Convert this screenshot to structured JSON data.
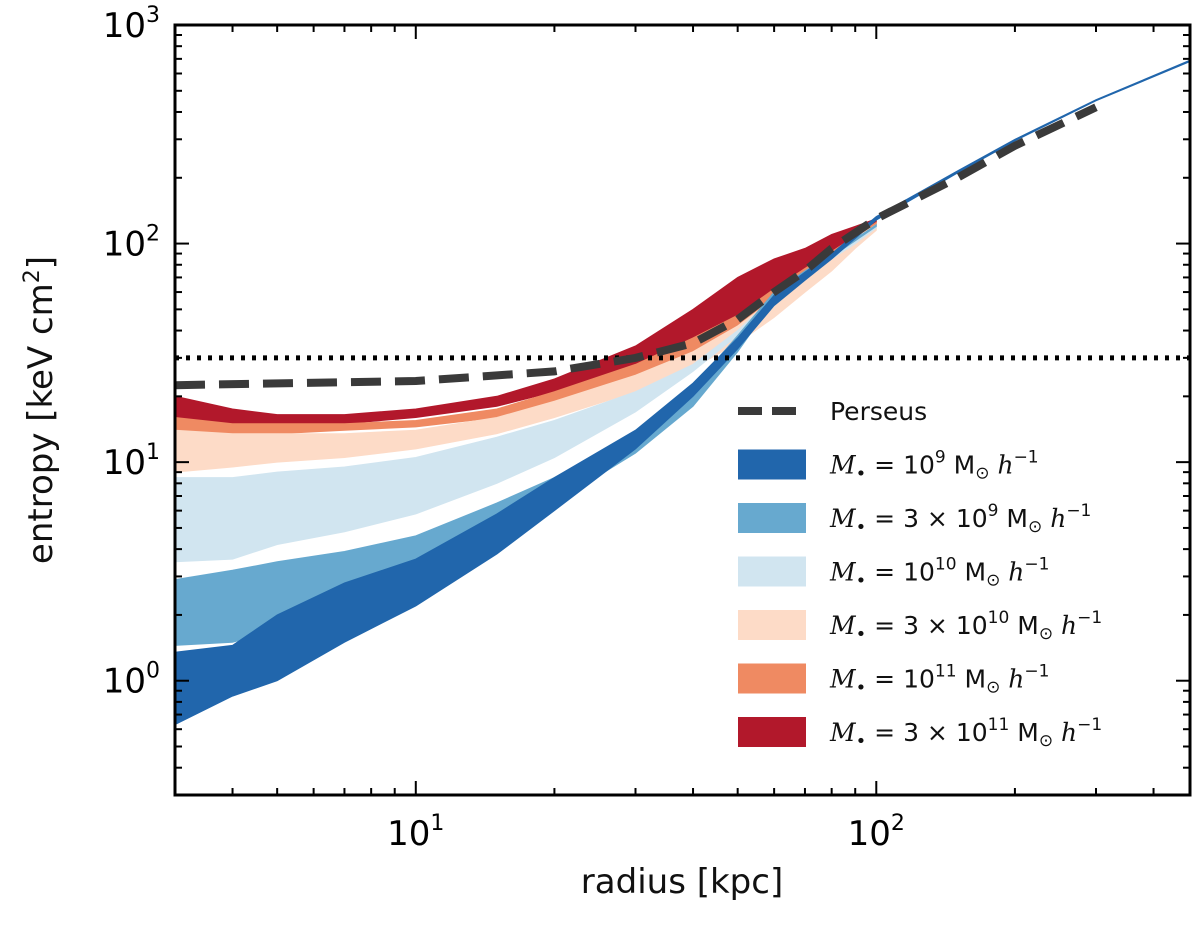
{
  "chart_data": {
    "type": "area",
    "title": "",
    "xlabel": "radius [kpc]",
    "ylabel": "entropy [keV cm",
    "ylabel_sup": "2",
    "ylabel_close": "]",
    "xscale": "log",
    "yscale": "log",
    "xlim": [
      3.0,
      480
    ],
    "ylim": [
      0.3,
      1000
    ],
    "x_ticks": [
      {
        "value": 10,
        "base": "10",
        "exp": "1"
      },
      {
        "value": 100,
        "base": "10",
        "exp": "2"
      }
    ],
    "y_ticks": [
      {
        "value": 1,
        "base": "10",
        "exp": "0"
      },
      {
        "value": 10,
        "base": "10",
        "exp": "1"
      },
      {
        "value": 100,
        "base": "10",
        "exp": "2"
      },
      {
        "value": 1000,
        "base": "10",
        "exp": "3"
      }
    ],
    "reference_line": {
      "style": "dotted",
      "y": 30
    },
    "perseus": {
      "name": "Perseus",
      "x": [
        3.0,
        10,
        20,
        30,
        40,
        50,
        60,
        70,
        80,
        100,
        150,
        200,
        300
      ],
      "y": [
        22.5,
        23.5,
        26,
        30,
        35,
        45,
        60,
        75,
        95,
        130,
        200,
        280,
        420
      ]
    },
    "series": [
      {
        "name": "M•=3×10¹¹ M⊙ h⁻¹",
        "color": "#b2182b",
        "x": [
          3.0,
          4,
          5,
          7,
          10,
          15,
          20,
          30,
          40,
          50,
          60,
          70,
          80,
          90,
          100
        ],
        "lower": [
          14.5,
          14.0,
          14.5,
          15.0,
          16.0,
          18.0,
          21.0,
          26.0,
          33.0,
          40.0,
          55.0,
          70.0,
          85.0,
          105.0,
          125.0
        ],
        "upper": [
          20.0,
          17.5,
          16.5,
          16.5,
          17.5,
          20.0,
          24.0,
          34.0,
          50.0,
          70.0,
          85.0,
          95.0,
          110.0,
          120.0,
          130.0
        ]
      },
      {
        "name": "M•=10¹¹ M⊙ h⁻¹",
        "color": "#ef8a62",
        "x": [
          3.0,
          4,
          5,
          7,
          10,
          15,
          20,
          30,
          40,
          50,
          60,
          70,
          80,
          90,
          100
        ],
        "lower": [
          13.0,
          13.0,
          13.5,
          14.0,
          14.5,
          16.0,
          19.0,
          24.0,
          30.0,
          37.0,
          50.0,
          65.0,
          80.0,
          100.0,
          120.0
        ],
        "upper": [
          16.0,
          15.0,
          15.0,
          15.0,
          15.5,
          17.5,
          21.0,
          28.0,
          37.0,
          47.0,
          62.0,
          77.0,
          92.0,
          108.0,
          125.0
        ]
      },
      {
        "name": "M•=3×10¹⁰ M⊙ h⁻¹",
        "color": "#fddbc7",
        "x": [
          3.0,
          4,
          5,
          7,
          10,
          15,
          20,
          30,
          40,
          50,
          60,
          70,
          80,
          90,
          100
        ],
        "lower": [
          9.0,
          9.5,
          10.0,
          10.5,
          11.5,
          13.5,
          16.0,
          21.0,
          27.0,
          35.0,
          46.0,
          60.0,
          75.0,
          95.0,
          115.0
        ],
        "upper": [
          14.0,
          13.5,
          13.5,
          13.5,
          14.0,
          16.0,
          19.0,
          25.0,
          32.0,
          42.0,
          56.0,
          72.0,
          88.0,
          106.0,
          122.0
        ]
      },
      {
        "name": "M•=10¹⁰ M⊙ h⁻¹",
        "color": "#d1e5f0",
        "x": [
          3.0,
          4,
          5,
          7,
          10,
          15,
          20,
          30,
          40,
          50,
          60,
          70,
          80,
          90,
          100
        ],
        "lower": [
          3.5,
          3.6,
          4.2,
          4.8,
          5.8,
          8.0,
          10.5,
          17.0,
          26.0,
          38.0,
          55.0,
          70.0,
          85.0,
          100.0,
          118.0
        ],
        "upper": [
          8.5,
          8.5,
          9.0,
          9.5,
          10.5,
          13.0,
          15.5,
          21.0,
          28.0,
          40.0,
          57.0,
          72.0,
          87.0,
          103.0,
          120.0
        ]
      },
      {
        "name": "M•=3×10⁹ M⊙ h⁻¹",
        "color": "#67a9cf",
        "x": [
          3.0,
          4,
          5,
          7,
          10,
          15,
          20,
          30,
          40,
          50,
          60,
          70,
          80,
          90,
          100
        ],
        "lower": [
          1.45,
          1.5,
          1.7,
          2.2,
          2.8,
          4.5,
          6.5,
          11.0,
          18.0,
          32.0,
          55.0,
          72.0,
          87.0,
          103.0,
          120.0
        ],
        "upper": [
          2.9,
          3.2,
          3.5,
          3.9,
          4.6,
          6.5,
          8.5,
          13.5,
          22.0,
          38.0,
          60.0,
          75.0,
          89.0,
          105.0,
          122.0
        ]
      },
      {
        "name": "M•=10⁹ M⊙ h⁻¹",
        "color": "#2166ac",
        "x": [
          3.0,
          4,
          5,
          7,
          10,
          15,
          20,
          30,
          40,
          50,
          60,
          70,
          80,
          100,
          150,
          200,
          300,
          480
        ],
        "lower": [
          0.63,
          0.85,
          1.0,
          1.5,
          2.2,
          3.8,
          6.0,
          11.5,
          20.0,
          33.0,
          52.0,
          68.0,
          85.0,
          128.0,
          210.0,
          295.0,
          450.0,
          680.0
        ],
        "upper": [
          1.35,
          1.45,
          2.0,
          2.8,
          3.6,
          5.8,
          8.5,
          14.0,
          23.0,
          37.0,
          58.0,
          74.0,
          90.0,
          133.0,
          215.0,
          300.0,
          455.0,
          690.0
        ]
      }
    ],
    "legend": {
      "placement": "lower-right",
      "entries": [
        {
          "label": "Perseus",
          "kind": "dash",
          "color": "#3a3a3a"
        },
        {
          "label": "M•=10⁹ M⊙ h⁻¹",
          "coef": "",
          "exp": "9",
          "color": "#2166ac"
        },
        {
          "label": "M•=3×10⁹ M⊙ h⁻¹",
          "coef": "3 × ",
          "exp": "9",
          "color": "#67a9cf"
        },
        {
          "label": "M•=10¹⁰ M⊙ h⁻¹",
          "coef": "",
          "exp": "10",
          "color": "#d1e5f0"
        },
        {
          "label": "M•=3×10¹⁰ M⊙ h⁻¹",
          "coef": "3 × ",
          "exp": "10",
          "color": "#fddbc7"
        },
        {
          "label": "M•=10¹¹ M⊙ h⁻¹",
          "coef": "",
          "exp": "11",
          "color": "#ef8a62"
        },
        {
          "label": "M•=3×10¹¹ M⊙ h⁻¹",
          "coef": "3 × ",
          "exp": "11",
          "color": "#b2182b"
        }
      ]
    }
  }
}
